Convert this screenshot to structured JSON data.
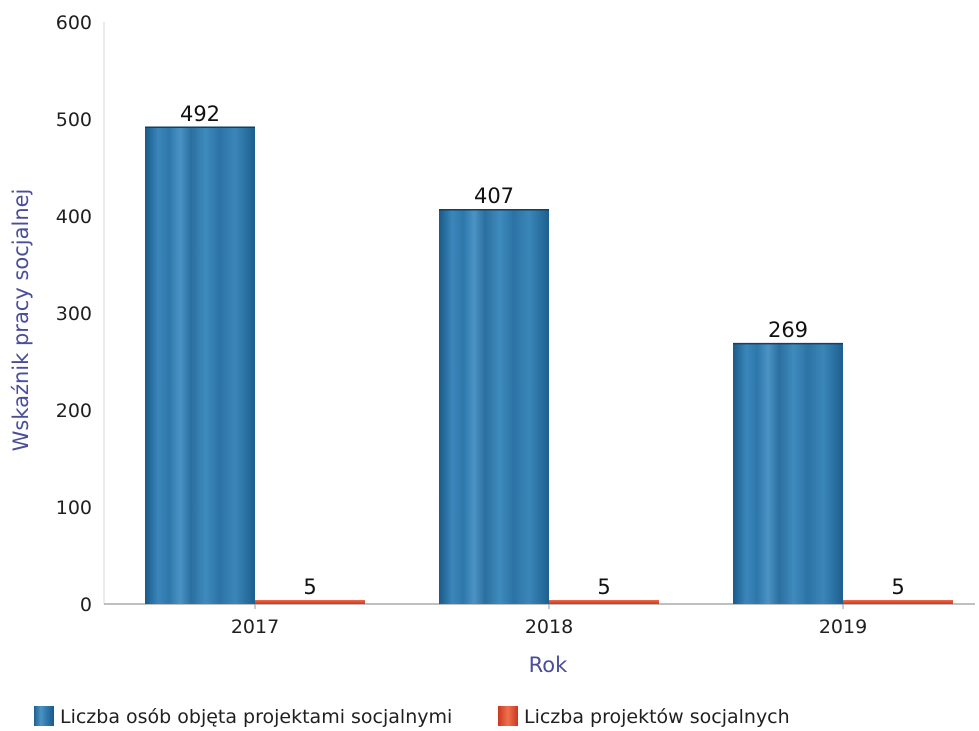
{
  "chart_data": {
    "type": "bar",
    "categories": [
      "2017",
      "2018",
      "2019"
    ],
    "series": [
      {
        "name": "Liczba osób objęta projektami socjalnymi",
        "values": [
          492,
          407,
          269
        ],
        "color": "#2f74a6"
      },
      {
        "name": "Liczba projektów socjalnych",
        "values": [
          5,
          5,
          5
        ],
        "color": "#e04b33"
      }
    ],
    "xlabel": "Rok",
    "ylabel": "Wskaźnik pracy socjalnej",
    "ylim": [
      0,
      600
    ],
    "yticks": [
      "0",
      "100",
      "200",
      "300",
      "400",
      "500",
      "600"
    ],
    "grid": false,
    "legend_position": "bottom",
    "axis_title_color": "#4a4e9a"
  }
}
